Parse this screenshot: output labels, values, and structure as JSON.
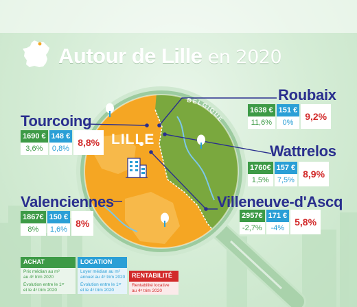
{
  "header": {
    "title_main": "Autour de Lille",
    "title_sub": "en 2020",
    "map_icon": "france-map-icon"
  },
  "map": {
    "center_label": "LILLE",
    "border_label": "BELGIQUE",
    "building_icon": "building-icon",
    "tree_icon": "tree-icon"
  },
  "cities": [
    {
      "name": "Roubaix",
      "buy_price": "1638 €",
      "rent_price": "151 €",
      "buy_change": "11,6%",
      "rent_change": "0%",
      "yield": "9,2%"
    },
    {
      "name": "Tourcoing",
      "buy_price": "1690 €",
      "rent_price": "148 €",
      "buy_change": "3,6%",
      "rent_change": "0,8%",
      "yield": "8,8%"
    },
    {
      "name": "Wattrelos",
      "buy_price": "1760€",
      "rent_price": "157 €",
      "buy_change": "1,5%",
      "rent_change": "7,5%",
      "yield": "8,9%"
    },
    {
      "name": "Valenciennes",
      "buy_price": "1867€",
      "rent_price": "150 €",
      "buy_change": "8%",
      "rent_change": "1,6%",
      "yield": "8%"
    },
    {
      "name": "Villeneuve-d'Ascq",
      "buy_price": "2957€",
      "rent_price": "171 €",
      "buy_change": "-2,7%",
      "rent_change": "-4%",
      "yield": "5,8%"
    }
  ],
  "legend": {
    "achat": {
      "title": "ACHAT",
      "line1": "Prix médian au m²",
      "line2": "au 4ᵉ trim 2020",
      "line3": "Évolution entre le 1ᵉʳ",
      "line4": "et le 4ᵉ trim 2020"
    },
    "location": {
      "title": "LOCATION",
      "line1": "Loyer médian au m²",
      "line2": "annuel au 4ᵉ trim 2020",
      "line3": "Évolution entre le 1ᵉʳ",
      "line4": "et le 4ᵉ trim 2020"
    },
    "rentabilite": {
      "title": "RENTABILITÉ",
      "line1": "Rentabilité locative",
      "line2": "au 4ᵉ trim 2020"
    }
  },
  "colors": {
    "achat": "#3d9a46",
    "location": "#2a9fd6",
    "rentabilite": "#d22a2a",
    "city_name": "#2a2f8e",
    "map_orange": "#f5a623"
  }
}
